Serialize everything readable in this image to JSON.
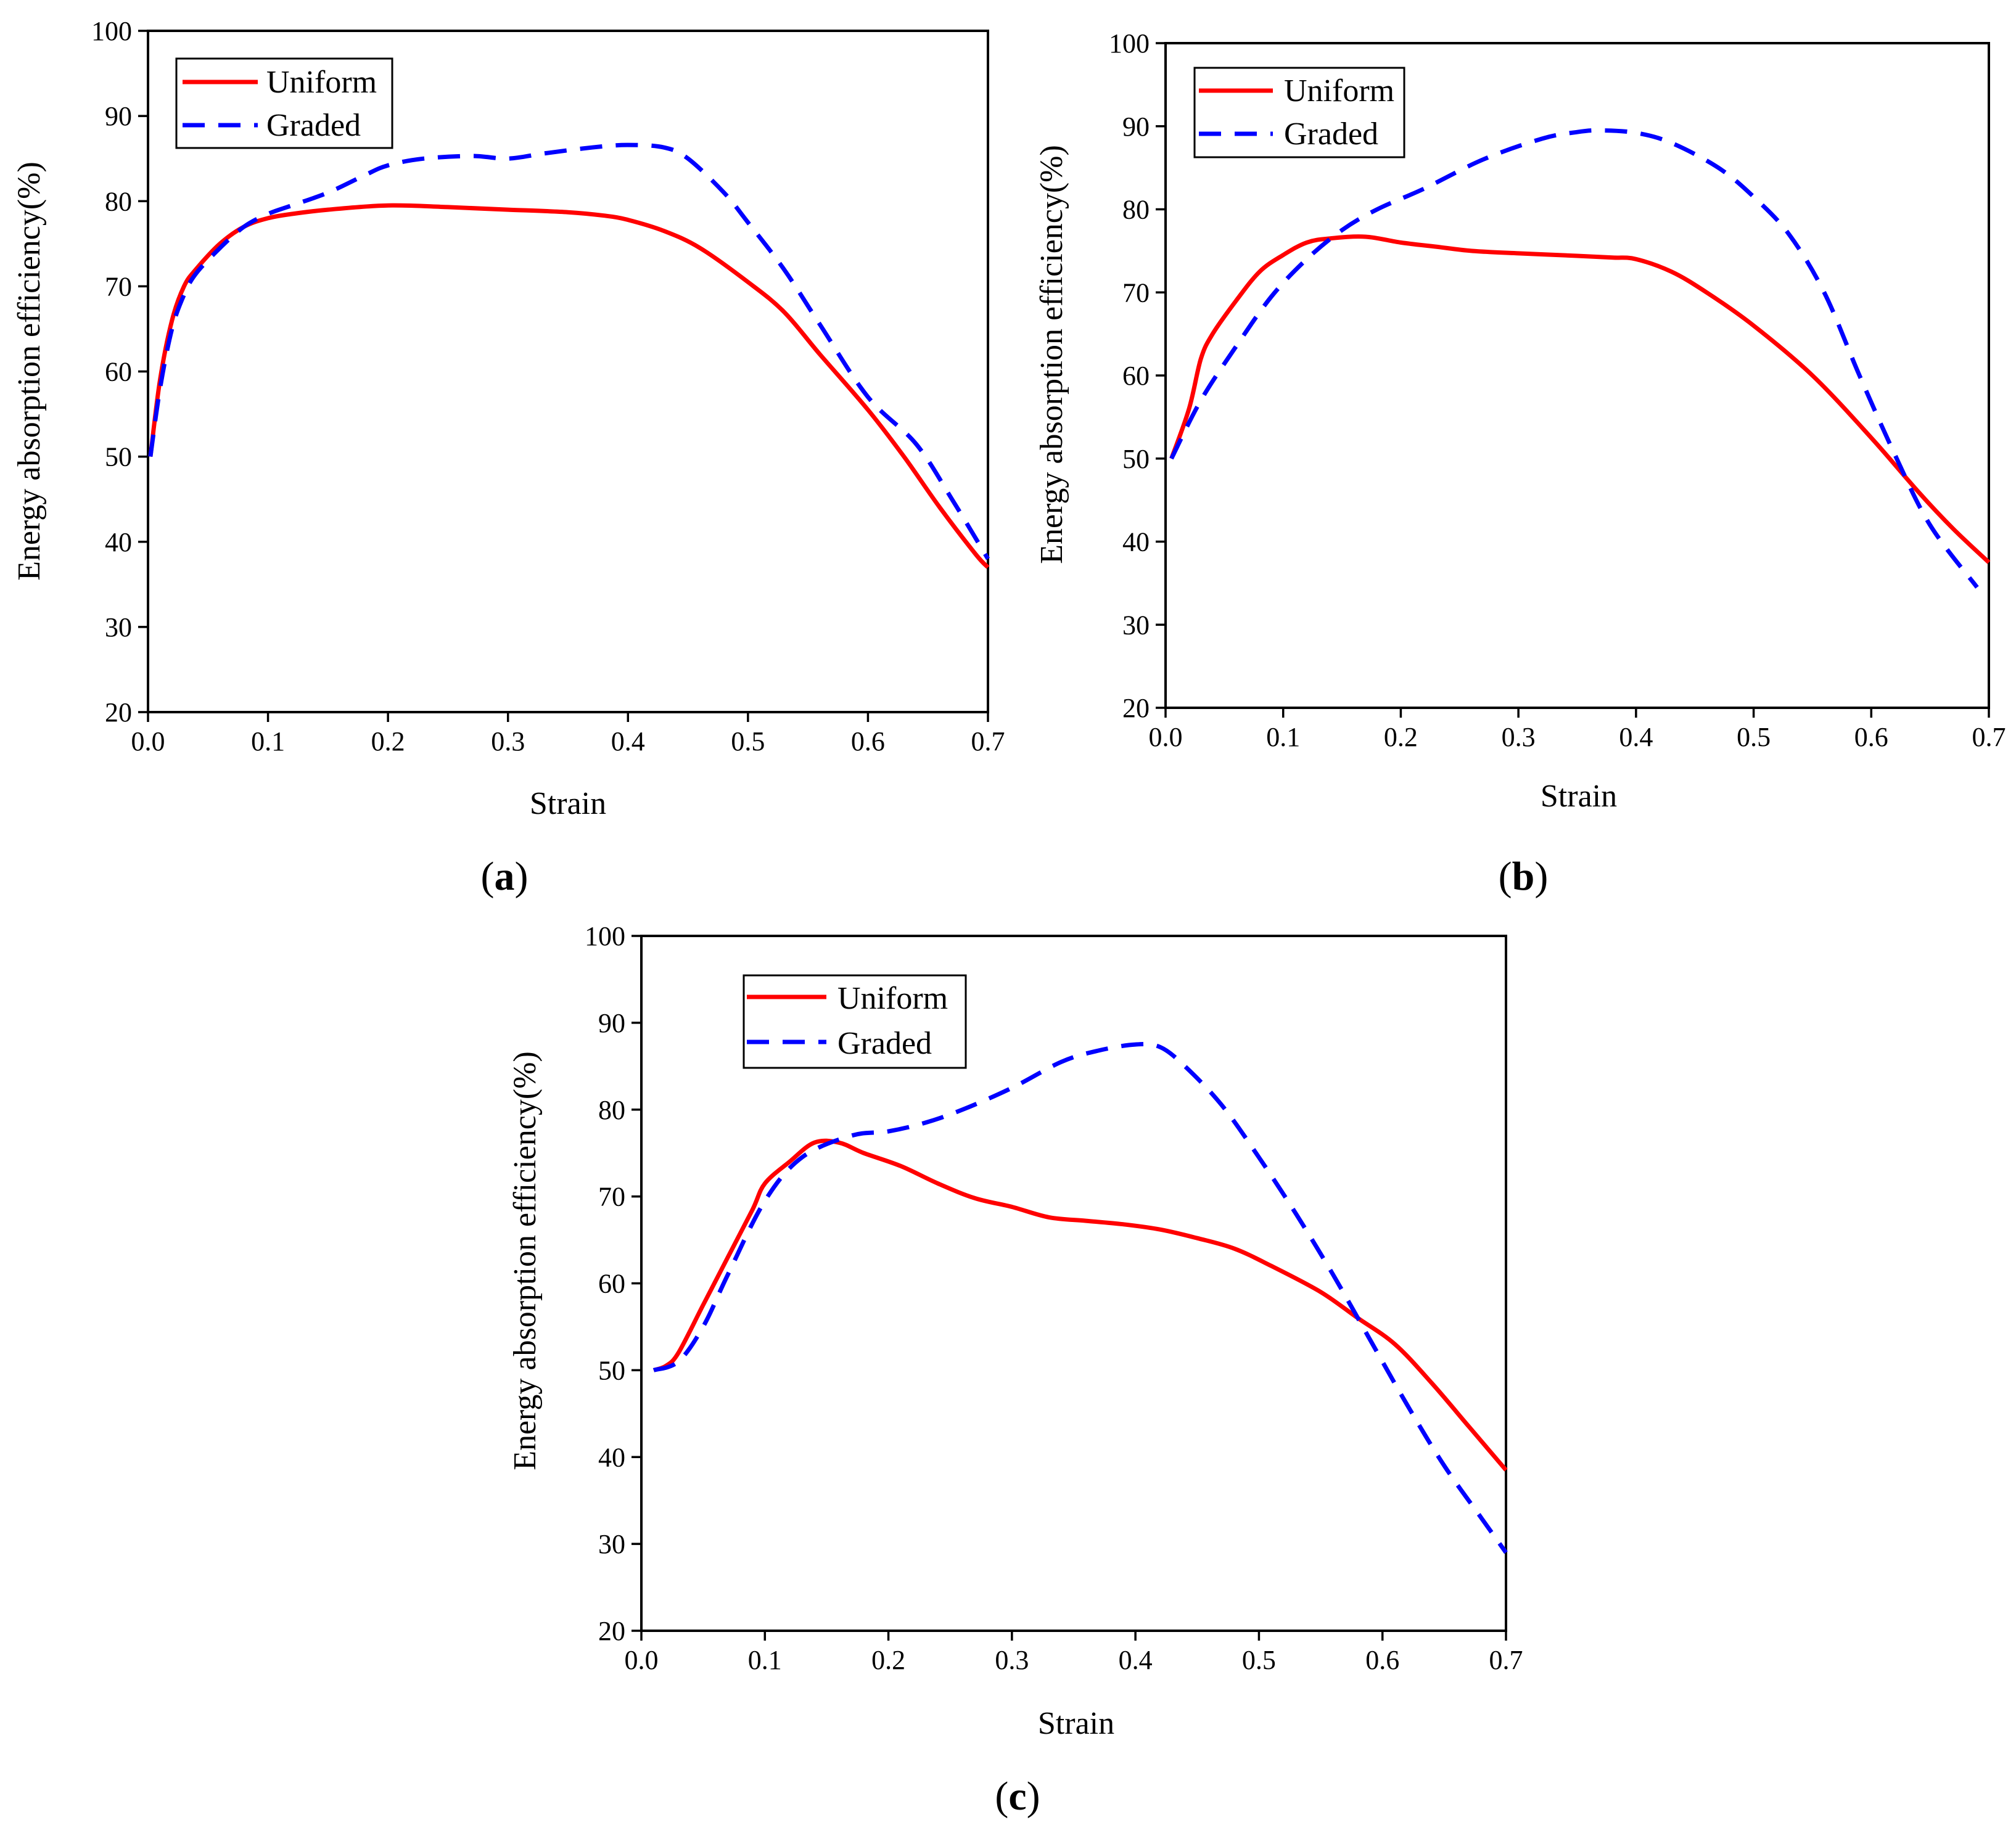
{
  "chart_data": [
    {
      "type": "line",
      "panel_label": "a",
      "xlabel": "Strain",
      "ylabel": "Energy absorption efficiency(%)",
      "xlim": [
        0.0,
        0.7
      ],
      "ylim": [
        20,
        100
      ],
      "xticks": [
        "0.0",
        "0.1",
        "0.2",
        "0.3",
        "0.4",
        "0.5",
        "0.6",
        "0.7"
      ],
      "yticks": [
        "20",
        "30",
        "40",
        "50",
        "60",
        "70",
        "80",
        "90",
        "100"
      ],
      "legend": {
        "position": "top-left",
        "entries": [
          "Uniform",
          "Graded"
        ]
      },
      "series": [
        {
          "name": "Uniform",
          "color": "#ff0000",
          "style": "solid",
          "x": [
            0.002,
            0.01,
            0.02,
            0.03,
            0.04,
            0.06,
            0.08,
            0.1,
            0.12,
            0.15,
            0.2,
            0.25,
            0.3,
            0.35,
            0.38,
            0.4,
            0.43,
            0.46,
            0.5,
            0.53,
            0.56,
            0.6,
            0.63,
            0.66,
            0.69,
            0.7
          ],
          "y": [
            50,
            59,
            66,
            70,
            72,
            75,
            77,
            78,
            78.5,
            79,
            79.5,
            79.3,
            79,
            78.7,
            78.3,
            77.8,
            76.5,
            74.5,
            70.5,
            67,
            62,
            55.5,
            50,
            44,
            38.5,
            37
          ]
        },
        {
          "name": "Graded",
          "color": "#0000ff",
          "style": "dashed",
          "x": [
            0.002,
            0.01,
            0.02,
            0.03,
            0.04,
            0.06,
            0.08,
            0.1,
            0.12,
            0.15,
            0.18,
            0.2,
            0.23,
            0.27,
            0.3,
            0.33,
            0.37,
            0.4,
            0.43,
            0.45,
            0.48,
            0.5,
            0.53,
            0.56,
            0.6,
            0.64,
            0.67,
            0.7
          ],
          "y": [
            50,
            58,
            65,
            69,
            71.5,
            74.5,
            77,
            78.5,
            79.5,
            81,
            83,
            84.2,
            85,
            85.3,
            85,
            85.6,
            86.3,
            86.6,
            86.3,
            85,
            81,
            77.5,
            72,
            65.5,
            57,
            51.5,
            45,
            38
          ]
        }
      ]
    },
    {
      "type": "line",
      "panel_label": "b",
      "xlabel": "Strain",
      "ylabel": "Energy absorption efficiency(%)",
      "xlim": [
        0.0,
        0.7
      ],
      "ylim": [
        20,
        100
      ],
      "xticks": [
        "0.0",
        "0.1",
        "0.2",
        "0.3",
        "0.4",
        "0.5",
        "0.6",
        "0.7"
      ],
      "yticks": [
        "20",
        "30",
        "40",
        "50",
        "60",
        "70",
        "80",
        "90",
        "100"
      ],
      "legend": {
        "position": "top-left",
        "entries": [
          "Uniform",
          "Graded"
        ]
      },
      "series": [
        {
          "name": "Uniform",
          "color": "#ff0000",
          "style": "solid",
          "x": [
            0.005,
            0.02,
            0.03,
            0.04,
            0.06,
            0.08,
            0.1,
            0.12,
            0.14,
            0.17,
            0.2,
            0.23,
            0.26,
            0.3,
            0.35,
            0.38,
            0.4,
            0.43,
            0.46,
            0.5,
            0.55,
            0.6,
            0.64,
            0.67,
            0.7
          ],
          "y": [
            50,
            56,
            62,
            65,
            69,
            72.5,
            74.5,
            76,
            76.5,
            76.7,
            76,
            75.5,
            75,
            74.7,
            74.4,
            74.2,
            74,
            72.5,
            70,
            66,
            60,
            52.5,
            46,
            41.5,
            37.5
          ]
        },
        {
          "name": "Graded",
          "color": "#0000ff",
          "style": "dashed",
          "x": [
            0.005,
            0.03,
            0.06,
            0.09,
            0.12,
            0.15,
            0.18,
            0.22,
            0.27,
            0.32,
            0.35,
            0.37,
            0.4,
            0.43,
            0.47,
            0.5,
            0.53,
            0.56,
            0.59,
            0.62,
            0.65,
            0.69
          ],
          "y": [
            50,
            57,
            63.5,
            69.5,
            74,
            77.5,
            80,
            82.5,
            86,
            88.5,
            89.3,
            89.5,
            89.2,
            88,
            85,
            81.5,
            77,
            70,
            60,
            50.5,
            42,
            34.5
          ]
        }
      ]
    },
    {
      "type": "line",
      "panel_label": "c",
      "xlabel": "Strain",
      "ylabel": "Energy absorption efficiency(%)",
      "xlim": [
        0.0,
        0.7
      ],
      "ylim": [
        20,
        100
      ],
      "xticks": [
        "0.0",
        "0.1",
        "0.2",
        "0.3",
        "0.4",
        "0.5",
        "0.6",
        "0.7"
      ],
      "yticks": [
        "20",
        "30",
        "40",
        "50",
        "60",
        "70",
        "80",
        "90",
        "100"
      ],
      "legend": {
        "position": "top-left",
        "entries": [
          "Uniform",
          "Graded"
        ]
      },
      "series": [
        {
          "name": "Uniform",
          "color": "#ff0000",
          "style": "solid",
          "x": [
            0.01,
            0.02,
            0.03,
            0.05,
            0.07,
            0.09,
            0.1,
            0.12,
            0.14,
            0.16,
            0.18,
            0.21,
            0.24,
            0.27,
            0.3,
            0.33,
            0.36,
            0.39,
            0.42,
            0.45,
            0.48,
            0.51,
            0.55,
            0.58,
            0.61,
            0.64,
            0.67,
            0.7
          ],
          "y": [
            50,
            50.5,
            52,
            57.5,
            63,
            68.5,
            71.5,
            74,
            76.2,
            76.2,
            75,
            73.5,
            71.5,
            69.8,
            68.8,
            67.6,
            67.2,
            66.8,
            66.2,
            65.2,
            64,
            62,
            59,
            56,
            53,
            48.5,
            43.5,
            38.5
          ]
        },
        {
          "name": "Graded",
          "color": "#0000ff",
          "style": "dashed",
          "x": [
            0.01,
            0.03,
            0.05,
            0.07,
            0.1,
            0.13,
            0.17,
            0.2,
            0.23,
            0.26,
            0.3,
            0.34,
            0.37,
            0.4,
            0.42,
            0.44,
            0.47,
            0.5,
            0.53,
            0.56,
            0.59,
            0.62,
            0.65,
            0.68,
            0.7
          ],
          "y": [
            50,
            51,
            55,
            61,
            69.5,
            74.5,
            77,
            77.5,
            78.5,
            80,
            82.5,
            85.5,
            86.8,
            87.5,
            87.2,
            85,
            80.5,
            74.5,
            68,
            61,
            53.5,
            46,
            39,
            33,
            29
          ]
        }
      ]
    }
  ]
}
